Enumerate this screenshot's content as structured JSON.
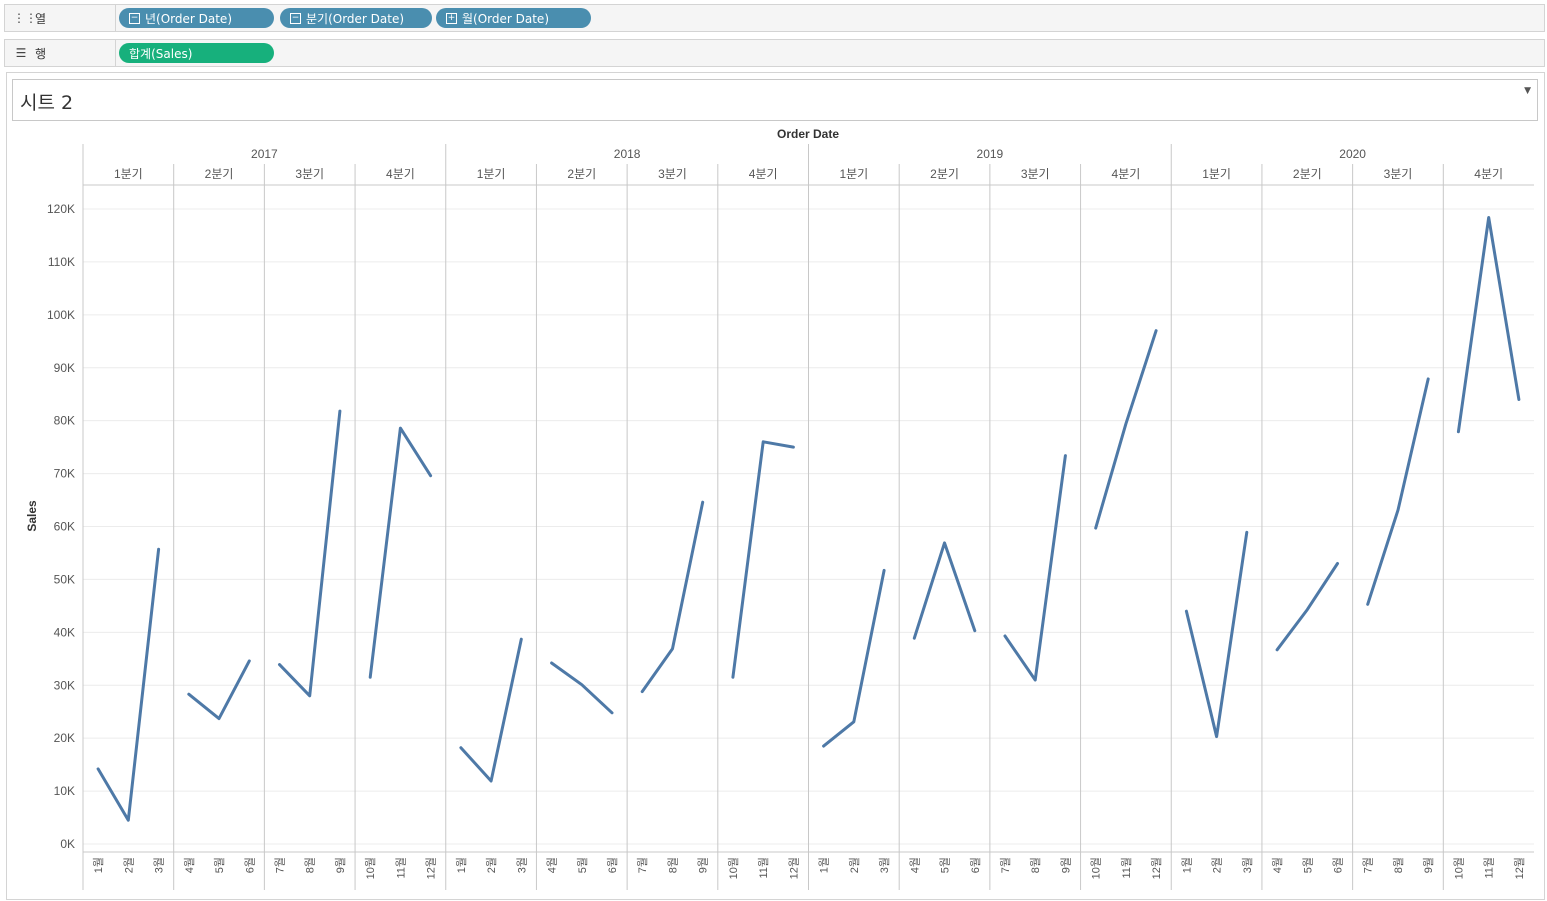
{
  "shelves": {
    "columns": {
      "icon": "columns-icon",
      "label": "열",
      "pills": [
        {
          "label": "년(Order Date)",
          "icon": "minus-box-icon",
          "symbol": "−"
        },
        {
          "label": "분기(Order Date)",
          "icon": "minus-box-icon",
          "symbol": "−"
        },
        {
          "label": "월(Order Date)",
          "icon": "plus-box-icon",
          "symbol": "+"
        }
      ]
    },
    "rows": {
      "icon": "rows-icon",
      "label": "행",
      "pills": [
        {
          "label": "합계(Sales)"
        }
      ]
    }
  },
  "sheet": {
    "title": "시트 2",
    "dropdown_icon": "chevron-down-icon"
  },
  "colors": {
    "line": "#4e79a7",
    "dimension_pill": "#4a8eaf",
    "measure_pill": "#17b07c"
  },
  "chart_data": {
    "type": "line",
    "header_title": "Order Date",
    "ylabel": "Sales",
    "ylim": [
      0,
      125000
    ],
    "yticks": [
      0,
      10000,
      20000,
      30000,
      40000,
      50000,
      60000,
      70000,
      80000,
      90000,
      100000,
      110000,
      120000
    ],
    "ytick_labels": [
      "0K",
      "10K",
      "20K",
      "30K",
      "40K",
      "50K",
      "60K",
      "70K",
      "80K",
      "90K",
      "100K",
      "110K",
      "120K"
    ],
    "grid": true,
    "years": [
      "2017",
      "2018",
      "2019",
      "2020"
    ],
    "quarter_labels": [
      "1분기",
      "2분기",
      "3분기",
      "4분기"
    ],
    "month_labels": [
      "1월",
      "2월",
      "3월",
      "4월",
      "5월",
      "6월",
      "7월",
      "8월",
      "9월",
      "10월",
      "11월",
      "12월"
    ],
    "series": [
      {
        "year": "2017",
        "quarters": [
          {
            "quarter": "1분기",
            "months": [
              "1월",
              "2월",
              "3월"
            ],
            "values": [
              14200,
              4500,
              55700
            ]
          },
          {
            "quarter": "2분기",
            "months": [
              "4월",
              "5월",
              "6월"
            ],
            "values": [
              28300,
              23700,
              34600
            ]
          },
          {
            "quarter": "3분기",
            "months": [
              "7월",
              "8월",
              "9월"
            ],
            "values": [
              33900,
              28000,
              81800
            ]
          },
          {
            "quarter": "4분기",
            "months": [
              "10월",
              "11월",
              "12월"
            ],
            "values": [
              31500,
              78600,
              69600
            ]
          }
        ]
      },
      {
        "year": "2018",
        "quarters": [
          {
            "quarter": "1분기",
            "months": [
              "1월",
              "2월",
              "3월"
            ],
            "values": [
              18200,
              11900,
              38700
            ]
          },
          {
            "quarter": "2분기",
            "months": [
              "4월",
              "5월",
              "6월"
            ],
            "values": [
              34200,
              30100,
              24800
            ]
          },
          {
            "quarter": "3분기",
            "months": [
              "7월",
              "8월",
              "9월"
            ],
            "values": [
              28800,
              36900,
              64600
            ]
          },
          {
            "quarter": "4분기",
            "months": [
              "10월",
              "11월",
              "12월"
            ],
            "values": [
              31500,
              76000,
              75000
            ]
          }
        ]
      },
      {
        "year": "2019",
        "quarters": [
          {
            "quarter": "1분기",
            "months": [
              "1월",
              "2월",
              "3월"
            ],
            "values": [
              18500,
              23100,
              51700
            ]
          },
          {
            "quarter": "2분기",
            "months": [
              "4월",
              "5월",
              "6월"
            ],
            "values": [
              38900,
              56900,
              40300
            ]
          },
          {
            "quarter": "3분기",
            "months": [
              "7월",
              "8월",
              "9월"
            ],
            "values": [
              39300,
              31000,
              73400
            ]
          },
          {
            "quarter": "4분기",
            "months": [
              "10월",
              "11월",
              "12월"
            ],
            "values": [
              59700,
              79400,
              97000
            ]
          }
        ]
      },
      {
        "year": "2020",
        "quarters": [
          {
            "quarter": "1분기",
            "months": [
              "1월",
              "2월",
              "3월"
            ],
            "values": [
              44000,
              20300,
              58900
            ]
          },
          {
            "quarter": "2분기",
            "months": [
              "4월",
              "5월",
              "6월"
            ],
            "values": [
              36700,
              44300,
              53000
            ]
          },
          {
            "quarter": "3분기",
            "months": [
              "7월",
              "8월",
              "9월"
            ],
            "values": [
              45300,
              63100,
              87900
            ]
          },
          {
            "quarter": "4분기",
            "months": [
              "10월",
              "11월",
              "12월"
            ],
            "values": [
              77900,
              118400,
              84000
            ]
          }
        ]
      }
    ]
  }
}
